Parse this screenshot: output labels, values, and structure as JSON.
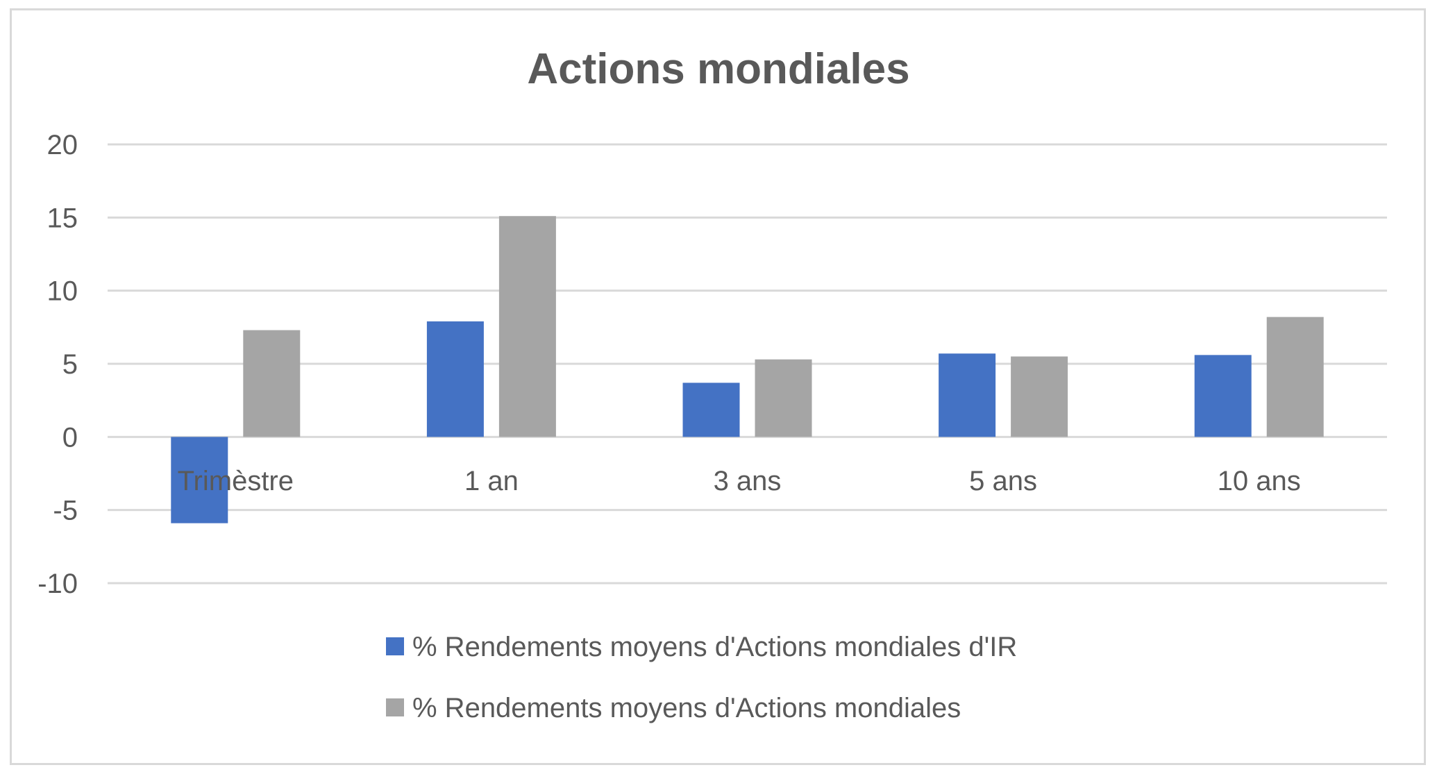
{
  "chart_data": {
    "type": "bar",
    "title": "Actions mondiales",
    "xlabel": "",
    "ylabel": "",
    "categories": [
      "Trimèstre",
      "1 an",
      "3 ans",
      "5 ans",
      "10 ans"
    ],
    "ylim": [
      -10,
      20
    ],
    "yticks": [
      20,
      15,
      10,
      5,
      0,
      -5,
      -10
    ],
    "grid": true,
    "legend_position": "bottom",
    "series": [
      {
        "name": "% Rendements moyens d'Actions mondiales d'IR",
        "color": "#4472C4",
        "values": [
          -5.9,
          7.9,
          3.7,
          5.7,
          5.6
        ]
      },
      {
        "name": "% Rendements moyens d'Actions mondiales",
        "color": "#A5A5A5",
        "values": [
          7.3,
          15.1,
          5.3,
          5.5,
          8.2
        ]
      }
    ]
  }
}
